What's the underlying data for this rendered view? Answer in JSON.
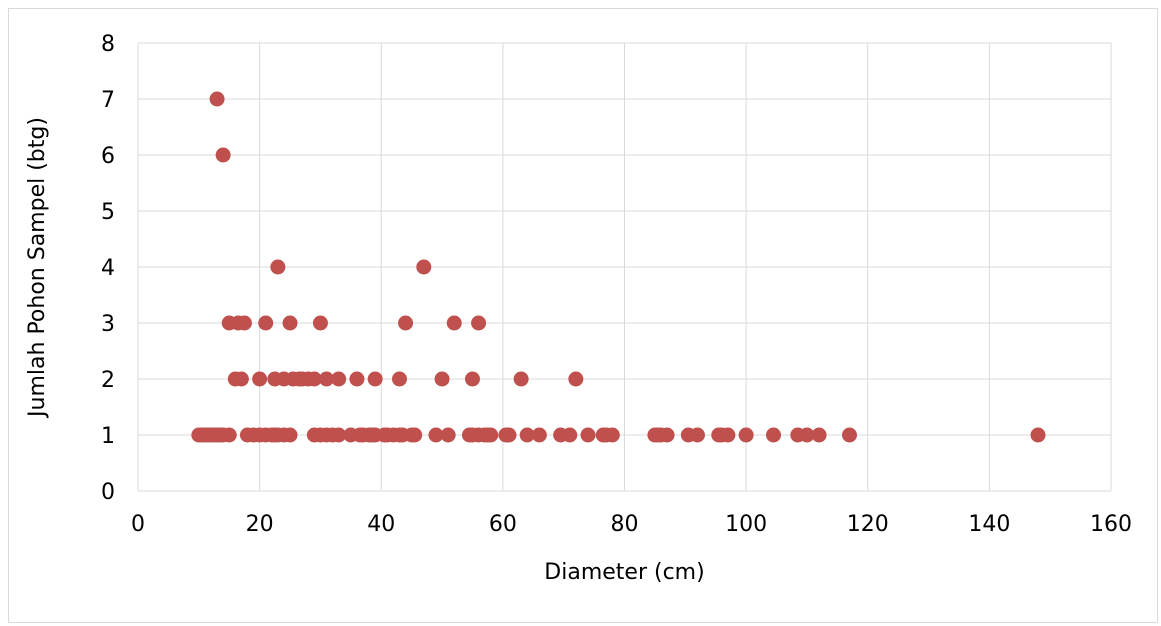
{
  "chart_data": {
    "type": "scatter",
    "title": "",
    "xlabel": "Diameter (cm)",
    "ylabel": "Jumlah Pohon Sampel (btg)",
    "xlim": [
      0,
      160
    ],
    "ylim": [
      0,
      8
    ],
    "xticks": [
      0,
      20,
      40,
      60,
      80,
      100,
      120,
      140,
      160
    ],
    "yticks": [
      0,
      1,
      2,
      3,
      4,
      5,
      6,
      7,
      8
    ],
    "grid": true,
    "legend": "none",
    "marker_color": "#c0504d",
    "gridline_color": "#d9d9d9",
    "points": [
      {
        "x": 10,
        "y": 1
      },
      {
        "x": 10.5,
        "y": 1
      },
      {
        "x": 11,
        "y": 1
      },
      {
        "x": 11.5,
        "y": 1
      },
      {
        "x": 12,
        "y": 1
      },
      {
        "x": 12.5,
        "y": 1
      },
      {
        "x": 13,
        "y": 1
      },
      {
        "x": 13.5,
        "y": 1
      },
      {
        "x": 14,
        "y": 1
      },
      {
        "x": 15,
        "y": 1
      },
      {
        "x": 18,
        "y": 1
      },
      {
        "x": 19,
        "y": 1
      },
      {
        "x": 20,
        "y": 1
      },
      {
        "x": 21,
        "y": 1
      },
      {
        "x": 22,
        "y": 1
      },
      {
        "x": 22.5,
        "y": 1
      },
      {
        "x": 23,
        "y": 1
      },
      {
        "x": 24,
        "y": 1
      },
      {
        "x": 25,
        "y": 1
      },
      {
        "x": 29,
        "y": 1
      },
      {
        "x": 30,
        "y": 1
      },
      {
        "x": 31,
        "y": 1
      },
      {
        "x": 32,
        "y": 1
      },
      {
        "x": 33,
        "y": 1
      },
      {
        "x": 35,
        "y": 1
      },
      {
        "x": 36.5,
        "y": 1
      },
      {
        "x": 37,
        "y": 1
      },
      {
        "x": 38,
        "y": 1
      },
      {
        "x": 38.5,
        "y": 1
      },
      {
        "x": 39,
        "y": 1
      },
      {
        "x": 40.5,
        "y": 1
      },
      {
        "x": 41,
        "y": 1
      },
      {
        "x": 42,
        "y": 1
      },
      {
        "x": 43,
        "y": 1
      },
      {
        "x": 43.5,
        "y": 1
      },
      {
        "x": 45,
        "y": 1
      },
      {
        "x": 45.5,
        "y": 1
      },
      {
        "x": 49,
        "y": 1
      },
      {
        "x": 51,
        "y": 1
      },
      {
        "x": 54.5,
        "y": 1
      },
      {
        "x": 55,
        "y": 1
      },
      {
        "x": 56,
        "y": 1
      },
      {
        "x": 57,
        "y": 1
      },
      {
        "x": 57.5,
        "y": 1
      },
      {
        "x": 58,
        "y": 1
      },
      {
        "x": 60.5,
        "y": 1
      },
      {
        "x": 61,
        "y": 1
      },
      {
        "x": 64,
        "y": 1
      },
      {
        "x": 66,
        "y": 1
      },
      {
        "x": 69.5,
        "y": 1
      },
      {
        "x": 71,
        "y": 1
      },
      {
        "x": 74,
        "y": 1
      },
      {
        "x": 76.5,
        "y": 1
      },
      {
        "x": 77,
        "y": 1
      },
      {
        "x": 78,
        "y": 1
      },
      {
        "x": 85,
        "y": 1
      },
      {
        "x": 85.5,
        "y": 1
      },
      {
        "x": 86,
        "y": 1
      },
      {
        "x": 87,
        "y": 1
      },
      {
        "x": 90.5,
        "y": 1
      },
      {
        "x": 92,
        "y": 1
      },
      {
        "x": 95.5,
        "y": 1
      },
      {
        "x": 96,
        "y": 1
      },
      {
        "x": 97,
        "y": 1
      },
      {
        "x": 100,
        "y": 1
      },
      {
        "x": 104.5,
        "y": 1
      },
      {
        "x": 108.5,
        "y": 1
      },
      {
        "x": 110,
        "y": 1
      },
      {
        "x": 112,
        "y": 1
      },
      {
        "x": 117,
        "y": 1
      },
      {
        "x": 148,
        "y": 1
      },
      {
        "x": 16,
        "y": 2
      },
      {
        "x": 17,
        "y": 2
      },
      {
        "x": 20,
        "y": 2
      },
      {
        "x": 22.5,
        "y": 2
      },
      {
        "x": 24,
        "y": 2
      },
      {
        "x": 25.5,
        "y": 2
      },
      {
        "x": 26.5,
        "y": 2
      },
      {
        "x": 27,
        "y": 2
      },
      {
        "x": 28,
        "y": 2
      },
      {
        "x": 29,
        "y": 2
      },
      {
        "x": 31,
        "y": 2
      },
      {
        "x": 33,
        "y": 2
      },
      {
        "x": 36,
        "y": 2
      },
      {
        "x": 39,
        "y": 2
      },
      {
        "x": 43,
        "y": 2
      },
      {
        "x": 50,
        "y": 2
      },
      {
        "x": 55,
        "y": 2
      },
      {
        "x": 63,
        "y": 2
      },
      {
        "x": 72,
        "y": 2
      },
      {
        "x": 15,
        "y": 3
      },
      {
        "x": 16.5,
        "y": 3
      },
      {
        "x": 17.5,
        "y": 3
      },
      {
        "x": 21,
        "y": 3
      },
      {
        "x": 25,
        "y": 3
      },
      {
        "x": 30,
        "y": 3
      },
      {
        "x": 44,
        "y": 3
      },
      {
        "x": 52,
        "y": 3
      },
      {
        "x": 56,
        "y": 3
      },
      {
        "x": 23,
        "y": 4
      },
      {
        "x": 47,
        "y": 4
      },
      {
        "x": 14,
        "y": 6
      },
      {
        "x": 13,
        "y": 7
      }
    ]
  }
}
